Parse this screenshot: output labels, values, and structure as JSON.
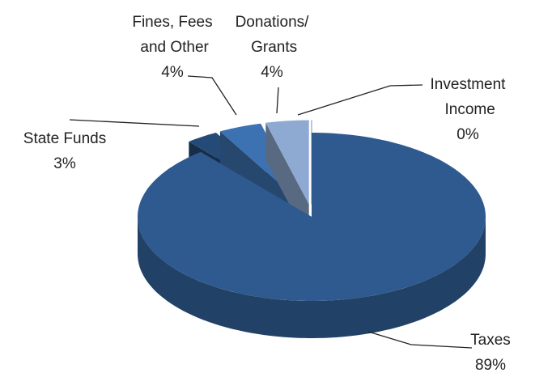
{
  "chart_data": {
    "type": "pie3d",
    "categories": [
      "Taxes",
      "State Funds",
      "Fines, Fees and Other",
      "Donations/Grants",
      "Investment Income"
    ],
    "values": [
      89,
      3,
      4,
      4,
      0
    ],
    "value_labels": [
      "89%",
      "3%",
      "4%",
      "4%",
      "0%"
    ],
    "colors": [
      "#2f5a8f",
      "#244a78",
      "#3d72b2",
      "#8ea9d2",
      "#d3dcea"
    ]
  }
}
